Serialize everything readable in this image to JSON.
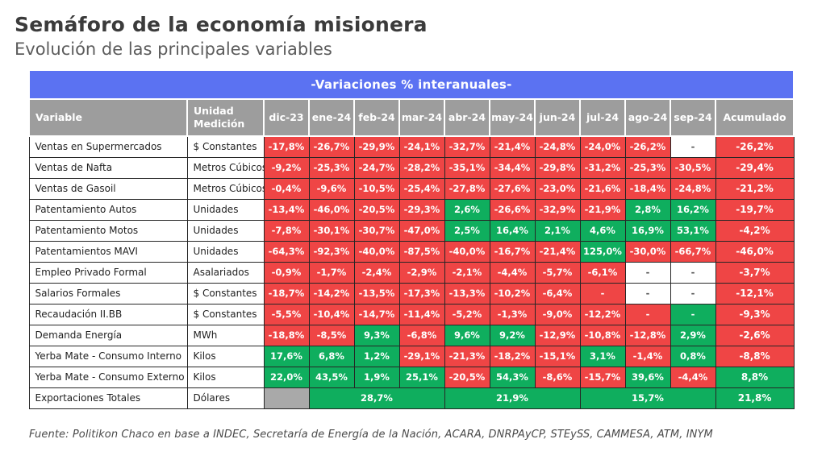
{
  "header": {
    "title": "Semáforo de la economía misionera",
    "subtitle": "Evolución de las principales variables"
  },
  "chart_data": {
    "type": "table",
    "title": "-Variaciones % interanuales-",
    "colors": {
      "red": "#EF4545",
      "green": "#0FAE5E",
      "gray": "#A9A9A9",
      "header_gray": "#9D9D9D",
      "banner_blue": "#5B72F2"
    },
    "columns": {
      "variable": "Variable",
      "unit": "Unidad Medición",
      "months": [
        "dic-23",
        "ene-24",
        "feb-24",
        "mar-24",
        "abr-24",
        "may-24",
        "jun-24",
        "jul-24",
        "ago-24",
        "sep-24"
      ],
      "accumulated": "Acumulado"
    },
    "rows": [
      {
        "variable": "Ventas en Supermercados",
        "unidad": "$ Constantes",
        "cells": [
          [
            "-17,8%",
            "red"
          ],
          [
            "-26,7%",
            "red"
          ],
          [
            "-29,9%",
            "red"
          ],
          [
            "-24,1%",
            "red"
          ],
          [
            "-32,7%",
            "red"
          ],
          [
            "-21,4%",
            "red"
          ],
          [
            "-24,8%",
            "red"
          ],
          [
            "-24,0%",
            "red"
          ],
          [
            "-26,2%",
            "red"
          ],
          [
            "-",
            "white"
          ]
        ],
        "acumulado": [
          "-26,2%",
          "red"
        ]
      },
      {
        "variable": "Ventas de Nafta",
        "unidad": "Metros Cúbicos",
        "cells": [
          [
            "-9,2%",
            "red"
          ],
          [
            "-25,3%",
            "red"
          ],
          [
            "-24,7%",
            "red"
          ],
          [
            "-28,2%",
            "red"
          ],
          [
            "-35,1%",
            "red"
          ],
          [
            "-34,4%",
            "red"
          ],
          [
            "-29,8%",
            "red"
          ],
          [
            "-31,2%",
            "red"
          ],
          [
            "-25,3%",
            "red"
          ],
          [
            "-30,5%",
            "red"
          ]
        ],
        "acumulado": [
          "-29,4%",
          "red"
        ]
      },
      {
        "variable": "Ventas de Gasoil",
        "unidad": "Metros Cúbicos",
        "cells": [
          [
            "-0,4%",
            "red"
          ],
          [
            "-9,6%",
            "red"
          ],
          [
            "-10,5%",
            "red"
          ],
          [
            "-25,4%",
            "red"
          ],
          [
            "-27,8%",
            "red"
          ],
          [
            "-27,6%",
            "red"
          ],
          [
            "-23,0%",
            "red"
          ],
          [
            "-21,6%",
            "red"
          ],
          [
            "-18,4%",
            "red"
          ],
          [
            "-24,8%",
            "red"
          ]
        ],
        "acumulado": [
          "-21,2%",
          "red"
        ]
      },
      {
        "variable": "Patentamiento Autos",
        "unidad": "Unidades",
        "cells": [
          [
            "-13,4%",
            "red"
          ],
          [
            "-46,0%",
            "red"
          ],
          [
            "-20,5%",
            "red"
          ],
          [
            "-29,3%",
            "red"
          ],
          [
            "2,6%",
            "green"
          ],
          [
            "-26,6%",
            "red"
          ],
          [
            "-32,9%",
            "red"
          ],
          [
            "-21,9%",
            "red"
          ],
          [
            "2,8%",
            "green"
          ],
          [
            "16,2%",
            "green"
          ]
        ],
        "acumulado": [
          "-19,7%",
          "red"
        ]
      },
      {
        "variable": "Patentamiento Motos",
        "unidad": "Unidades",
        "cells": [
          [
            "-7,8%",
            "red"
          ],
          [
            "-30,1%",
            "red"
          ],
          [
            "-30,7%",
            "red"
          ],
          [
            "-47,0%",
            "red"
          ],
          [
            "2,5%",
            "green"
          ],
          [
            "16,4%",
            "green"
          ],
          [
            "2,1%",
            "green"
          ],
          [
            "4,6%",
            "green"
          ],
          [
            "16,9%",
            "green"
          ],
          [
            "53,1%",
            "green"
          ]
        ],
        "acumulado": [
          "-4,2%",
          "red"
        ]
      },
      {
        "variable": "Patentamientos MAVI",
        "unidad": "Unidades",
        "cells": [
          [
            "-64,3%",
            "red"
          ],
          [
            "-92,3%",
            "red"
          ],
          [
            "-40,0%",
            "red"
          ],
          [
            "-87,5%",
            "red"
          ],
          [
            "-40,0%",
            "red"
          ],
          [
            "-16,7%",
            "red"
          ],
          [
            "-21,4%",
            "red"
          ],
          [
            "125,0%",
            "green"
          ],
          [
            "-30,0%",
            "red"
          ],
          [
            "-66,7%",
            "red"
          ]
        ],
        "acumulado": [
          "-46,0%",
          "red"
        ]
      },
      {
        "variable": "Empleo Privado Formal",
        "unidad": "Asalariados",
        "cells": [
          [
            "-0,9%",
            "red"
          ],
          [
            "-1,7%",
            "red"
          ],
          [
            "-2,4%",
            "red"
          ],
          [
            "-2,9%",
            "red"
          ],
          [
            "-2,1%",
            "red"
          ],
          [
            "-4,4%",
            "red"
          ],
          [
            "-5,7%",
            "red"
          ],
          [
            "-6,1%",
            "red"
          ],
          [
            "-",
            "white"
          ],
          [
            "-",
            "white"
          ]
        ],
        "acumulado": [
          "-3,7%",
          "red"
        ]
      },
      {
        "variable": "Salarios Formales",
        "unidad": "$ Constantes",
        "cells": [
          [
            "-18,7%",
            "red"
          ],
          [
            "-14,2%",
            "red"
          ],
          [
            "-13,5%",
            "red"
          ],
          [
            "-17,3%",
            "red"
          ],
          [
            "-13,3%",
            "red"
          ],
          [
            "-10,2%",
            "red"
          ],
          [
            "-6,4%",
            "red"
          ],
          [
            "-",
            "red"
          ],
          [
            "-",
            "white"
          ],
          [
            "-",
            "white"
          ]
        ],
        "acumulado": [
          "-12,1%",
          "red"
        ]
      },
      {
        "variable": "Recaudación II.BB",
        "unidad": "$ Constantes",
        "cells": [
          [
            "-5,5%",
            "red"
          ],
          [
            "-10,4%",
            "red"
          ],
          [
            "-14,7%",
            "red"
          ],
          [
            "-11,4%",
            "red"
          ],
          [
            "-5,2%",
            "red"
          ],
          [
            "-1,3%",
            "red"
          ],
          [
            "-9,0%",
            "red"
          ],
          [
            "-12,2%",
            "red"
          ],
          [
            "-",
            "red"
          ],
          [
            "-",
            "green"
          ]
        ],
        "acumulado": [
          "-9,3%",
          "red"
        ]
      },
      {
        "variable": "Demanda Energía",
        "unidad": "MWh",
        "cells": [
          [
            "-18,8%",
            "red"
          ],
          [
            "-8,5%",
            "red"
          ],
          [
            "9,3%",
            "green"
          ],
          [
            "-6,8%",
            "red"
          ],
          [
            "9,6%",
            "green"
          ],
          [
            "9,2%",
            "green"
          ],
          [
            "-12,9%",
            "red"
          ],
          [
            "-10,8%",
            "red"
          ],
          [
            "-12,8%",
            "red"
          ],
          [
            "2,9%",
            "green"
          ]
        ],
        "acumulado": [
          "-2,6%",
          "red"
        ]
      },
      {
        "variable": "Yerba Mate - Consumo Interno",
        "unidad": "Kilos",
        "cells": [
          [
            "17,6%",
            "green"
          ],
          [
            "6,8%",
            "green"
          ],
          [
            "1,2%",
            "green"
          ],
          [
            "-29,1%",
            "red"
          ],
          [
            "-21,3%",
            "red"
          ],
          [
            "-18,2%",
            "red"
          ],
          [
            "-15,1%",
            "red"
          ],
          [
            "3,1%",
            "green"
          ],
          [
            "-1,4%",
            "red"
          ],
          [
            "0,8%",
            "green"
          ]
        ],
        "acumulado": [
          "-8,8%",
          "red"
        ]
      },
      {
        "variable": "Yerba Mate - Consumo Externo",
        "unidad": "Kilos",
        "cells": [
          [
            "22,0%",
            "green"
          ],
          [
            "43,5%",
            "green"
          ],
          [
            "1,9%",
            "green"
          ],
          [
            "25,1%",
            "green"
          ],
          [
            "-20,5%",
            "red"
          ],
          [
            "54,3%",
            "green"
          ],
          [
            "-8,6%",
            "red"
          ],
          [
            "-15,7%",
            "red"
          ],
          [
            "39,6%",
            "green"
          ],
          [
            "-4,4%",
            "red"
          ]
        ],
        "acumulado": [
          "8,8%",
          "green"
        ]
      },
      {
        "variable": "Exportaciones Totales",
        "unidad": "Dólares",
        "cells": [
          [
            "",
            "gray",
            1
          ],
          [
            "28,7%",
            "green",
            3
          ],
          [
            "21,9%",
            "green",
            3
          ],
          [
            "15,7%",
            "green",
            3
          ]
        ],
        "acumulado": [
          "21,8%",
          "green"
        ]
      }
    ]
  },
  "footer": {
    "source": "Fuente: Politikon Chaco en base a INDEC, Secretaría de Energía de la Nación, ACARA, DNRPAyCP, STEySS, CAMMESA, ATM, INYM"
  }
}
